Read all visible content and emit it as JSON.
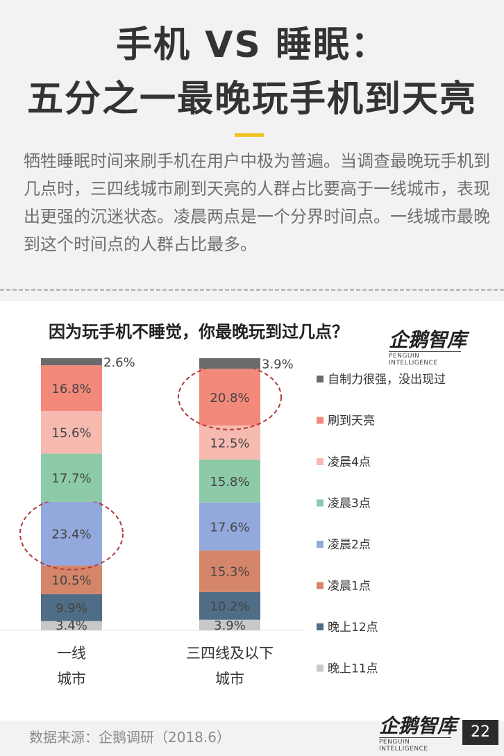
{
  "header": {
    "title_line1": "手机 VS 睡眠：",
    "title_line2": "五分之一最晚玩手机到天亮"
  },
  "intro_text": "牺牲睡眠时间来刷手机在用户中极为普遍。当调查最晚玩手机到几点时，三四线城市刷到天亮的人群占比要高于一线城市，表现出更强的沉迷状态。凌晨两点是一个分界时间点。一线城市最晚到这个时间点的人群占比最多。",
  "watermark": {
    "cn": "企鹅智库",
    "en": "PENGUIN INTELLIGENCE"
  },
  "source_text": "数据来源：企鹅调研（2018.6）",
  "page_number": "22",
  "colors": {
    "accent": "#f2c21f",
    "highlight_circle": "#b03a3a"
  },
  "chart_data": {
    "type": "bar",
    "stacked": true,
    "percent_stacked": true,
    "title": "因为玩手机不睡觉，你最晚玩到过几点？",
    "categories": [
      {
        "lines": [
          "一线",
          "城市"
        ]
      },
      {
        "lines": [
          "三四线及以下",
          "城市"
        ]
      }
    ],
    "series": [
      {
        "name": "晚上11点",
        "color": "#c8c8c8",
        "values": [
          3.4,
          3.9
        ]
      },
      {
        "name": "晚上12点",
        "color": "#4f6d86",
        "values": [
          9.9,
          10.2
        ]
      },
      {
        "name": "凌晨1点",
        "color": "#d5856a",
        "values": [
          10.5,
          15.3
        ]
      },
      {
        "name": "凌晨2点",
        "color": "#93a8dc",
        "values": [
          23.4,
          17.6
        ]
      },
      {
        "name": "凌晨3点",
        "color": "#8ccaa8",
        "values": [
          17.7,
          15.8
        ]
      },
      {
        "name": "凌晨4点",
        "color": "#f7bab0",
        "values": [
          15.6,
          12.5
        ]
      },
      {
        "name": "刷到天亮",
        "color": "#f3897b",
        "values": [
          16.8,
          20.8
        ]
      },
      {
        "name": "自制力很强，没出现过",
        "color": "#6b6b6b",
        "values": [
          2.6,
          3.9
        ]
      }
    ],
    "value_suffix": "%",
    "highlights": [
      {
        "category": 0,
        "series": "凌晨2点"
      },
      {
        "category": 1,
        "series": "刷到天亮"
      }
    ],
    "legend_position": "right",
    "grid": false
  }
}
